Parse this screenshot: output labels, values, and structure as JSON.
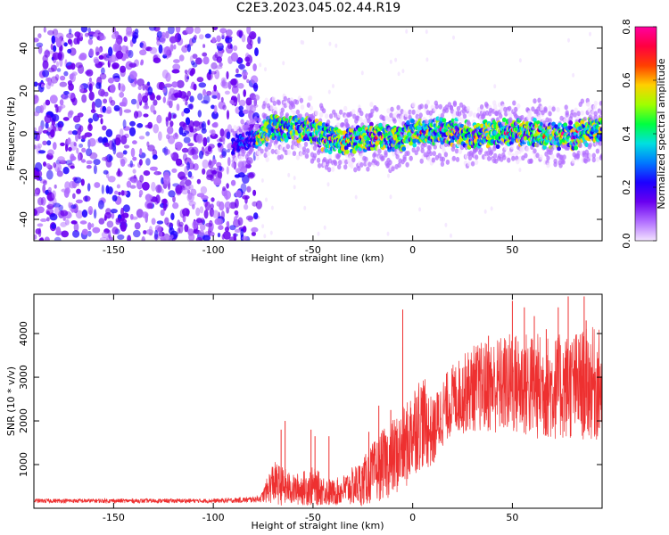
{
  "title": "C2E3.2023.045.02.44.R19",
  "chart_data": [
    {
      "type": "heatmap",
      "xlabel": "Height of straight line (km)",
      "ylabel": "Frequency (Hz)",
      "xlim": [
        -190,
        95
      ],
      "ylim": [
        -50,
        50
      ],
      "xticks": [
        -150,
        -100,
        -50,
        0,
        50
      ],
      "yticks": [
        -40,
        -20,
        0,
        20,
        40
      ],
      "description_noise_region_x": [
        -190,
        -77
      ],
      "signal_ridge": {
        "x_start": -90,
        "x_end": 95,
        "center_freq_points": [
          [
            -90,
            -5
          ],
          [
            -80,
            -3
          ],
          [
            -70,
            3
          ],
          [
            -60,
            3
          ],
          [
            -50,
            1
          ],
          [
            -40,
            -3
          ],
          [
            -30,
            -3
          ],
          [
            -20,
            -1
          ],
          [
            -10,
            -3
          ],
          [
            0,
            1
          ],
          [
            10,
            1
          ],
          [
            20,
            1
          ],
          [
            30,
            -1
          ],
          [
            40,
            0
          ],
          [
            50,
            1
          ],
          [
            60,
            1
          ],
          [
            70,
            -1
          ],
          [
            80,
            -1
          ],
          [
            90,
            2
          ]
        ],
        "half_width_hz": 4
      },
      "colorbar": {
        "label": "Normalized spectral amplitude",
        "range": [
          0.0,
          0.8
        ],
        "ticks": [
          "0.0",
          "0.2",
          "0.4",
          "0.6",
          "0.8"
        ],
        "colors": [
          "#f3e3ff",
          "#b06cff",
          "#6a00f0",
          "#1c00ff",
          "#0078ff",
          "#00e0e0",
          "#00ff40",
          "#a0ff00",
          "#ffd000",
          "#ff4000",
          "#ff0040",
          "#ff00a0"
        ]
      },
      "grid": false
    },
    {
      "type": "line",
      "xlabel": "Height of straight line (km)",
      "ylabel": "SNR (10 * v/v)",
      "xlim": [
        -190,
        95
      ],
      "ylim": [
        0,
        4900
      ],
      "xticks": [
        -150,
        -100,
        -50,
        0,
        50
      ],
      "yticks": [
        1000,
        2000,
        3000,
        4000
      ],
      "color": "#ee3030",
      "grid": false,
      "series": [
        {
          "x": [
            -190,
            -180,
            -170,
            -160,
            -150,
            -140,
            -130,
            -120,
            -110,
            -100,
            -90,
            -80,
            -76,
            -70,
            -65,
            -60,
            -55,
            -50,
            -45,
            -40,
            -35,
            -30,
            -25,
            -20,
            -15,
            -10,
            -5,
            -2,
            0,
            5,
            10,
            15,
            20,
            25,
            30,
            40,
            50,
            60,
            70,
            80,
            90,
            95
          ],
          "y": [
            170,
            170,
            170,
            170,
            170,
            170,
            170,
            170,
            170,
            170,
            180,
            200,
            230,
            600,
            500,
            420,
            460,
            500,
            420,
            350,
            420,
            500,
            600,
            800,
            1000,
            1150,
            1350,
            1500,
            1850,
            2000,
            1700,
            2200,
            2500,
            2600,
            2750,
            2800,
            2850,
            2800,
            2750,
            2800,
            2850,
            2800
          ],
          "spread": [
            50,
            50,
            50,
            50,
            50,
            50,
            50,
            50,
            50,
            50,
            60,
            70,
            90,
            500,
            450,
            350,
            400,
            450,
            350,
            300,
            350,
            450,
            550,
            700,
            800,
            900,
            950,
            1000,
            1100,
            1100,
            800,
            800,
            800,
            900,
            1000,
            1100,
            1200,
            1250,
            1200,
            1250,
            1300,
            1300
          ],
          "spikes": [
            [
              -66,
              1800
            ],
            [
              -64,
              2000
            ],
            [
              -51,
              1800
            ],
            [
              -49,
              1650
            ],
            [
              -42,
              1650
            ],
            [
              -22,
              1750
            ],
            [
              -17,
              2350
            ],
            [
              -11,
              2250
            ],
            [
              -5,
              2700
            ],
            [
              -5,
              3000
            ],
            [
              -5,
              3700
            ],
            [
              -5,
              4550
            ],
            [
              13,
              2600
            ],
            [
              27,
              3250
            ],
            [
              38,
              3950
            ],
            [
              50,
              4750
            ],
            [
              56,
              4600
            ],
            [
              61,
              4400
            ],
            [
              67,
              4100
            ],
            [
              73,
              4600
            ],
            [
              78,
              4850
            ],
            [
              86,
              4850
            ],
            [
              87,
              4300
            ]
          ]
        }
      ]
    }
  ]
}
